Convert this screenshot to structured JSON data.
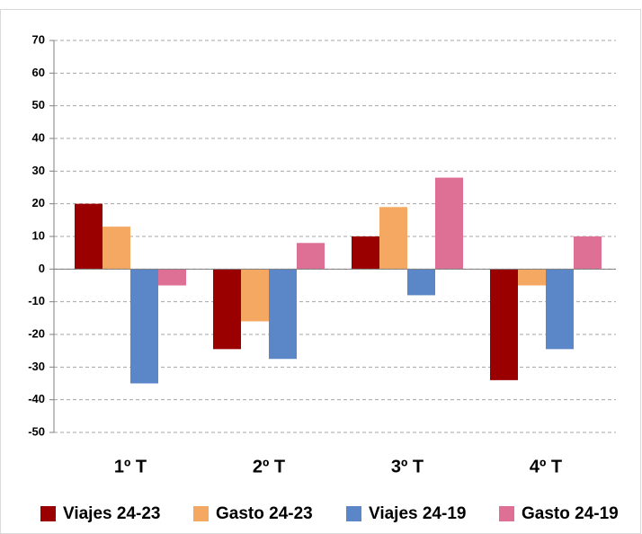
{
  "chart_data": {
    "type": "bar",
    "categories": [
      "1º T",
      "2º T",
      "3º T",
      "4º T"
    ],
    "series": [
      {
        "name": "Viajes 24-23",
        "color": "#9b0000",
        "values": [
          20,
          -24.5,
          10,
          -34
        ]
      },
      {
        "name": "Gasto 24-23",
        "color": "#f5a862",
        "values": [
          13,
          -16,
          19,
          -5
        ]
      },
      {
        "name": "Viajes 24-19",
        "color": "#5b87c9",
        "values": [
          -35,
          -27.5,
          -8,
          -24.5
        ]
      },
      {
        "name": "Gasto 24-19",
        "color": "#de7096",
        "values": [
          -5,
          8,
          28,
          10
        ]
      }
    ],
    "ylim": [
      -50,
      70
    ],
    "yticks": [
      -50,
      -40,
      -30,
      -20,
      -10,
      0,
      10,
      20,
      30,
      40,
      50,
      60,
      70
    ],
    "grid": true,
    "legend": "bottom"
  }
}
